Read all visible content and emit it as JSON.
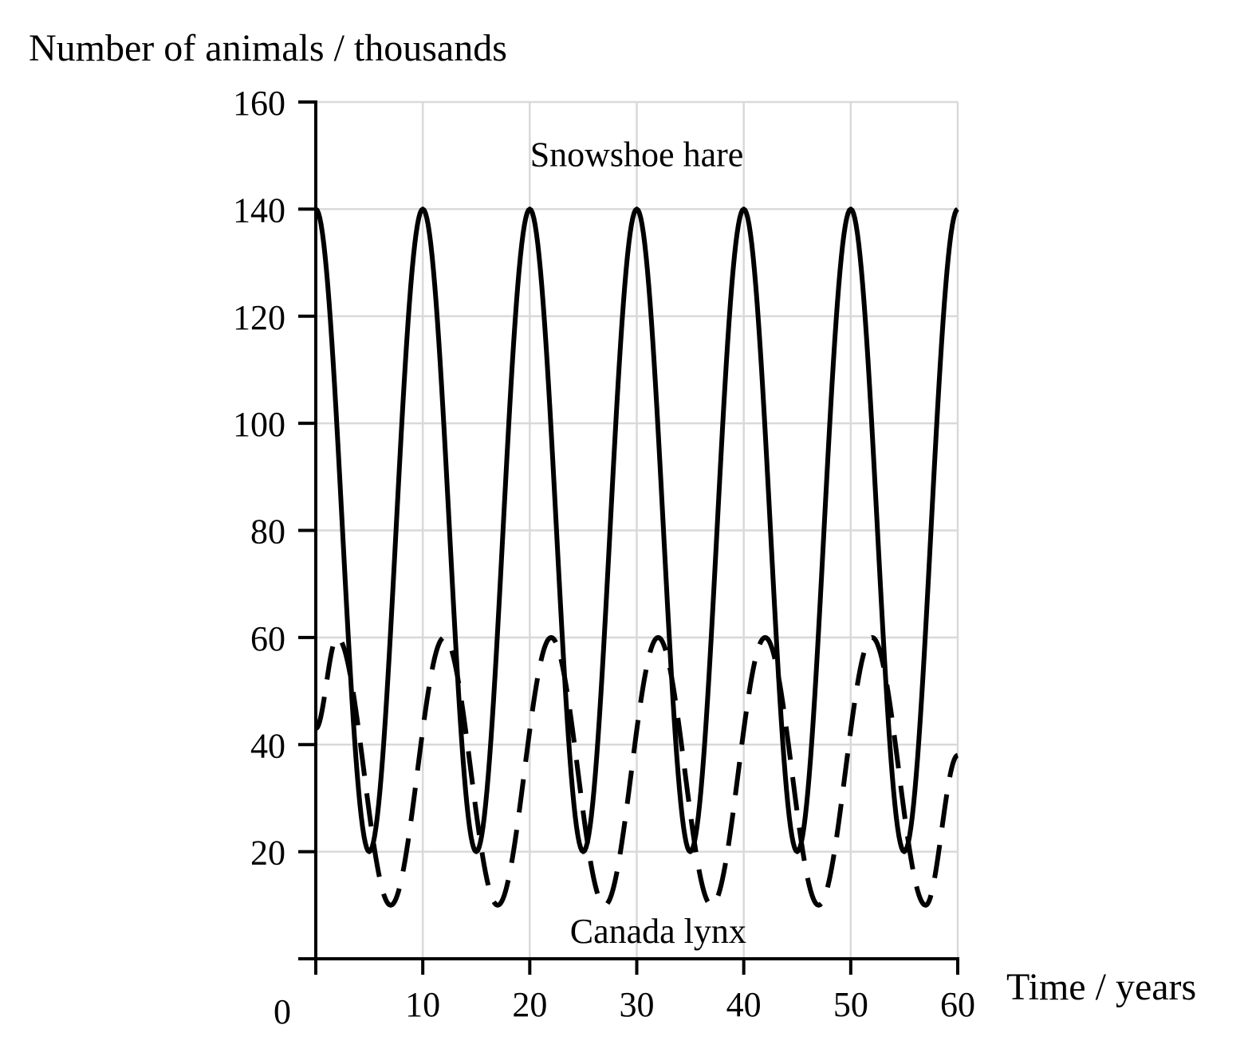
{
  "chart_data": {
    "type": "line",
    "ylabel": "Number of animals / thousands",
    "xlabel": "Time / years",
    "origin_label": "0",
    "xlim": [
      0,
      60
    ],
    "ylim": [
      0,
      160
    ],
    "x_ticks": [
      0,
      10,
      20,
      30,
      40,
      50,
      60
    ],
    "x_tick_labels": [
      "",
      "10",
      "20",
      "30",
      "40",
      "50",
      "60"
    ],
    "y_ticks": [
      0,
      20,
      40,
      60,
      80,
      100,
      120,
      140,
      160
    ],
    "y_tick_labels": [
      "",
      "20",
      "40",
      "60",
      "80",
      "100",
      "120",
      "140",
      "160"
    ],
    "grid": true,
    "series": [
      {
        "name": "Snowshoe hare",
        "style": "solid",
        "color": "#000000",
        "x": [
          0,
          5,
          10,
          15,
          20,
          25,
          30,
          35,
          40,
          45,
          50,
          55,
          60
        ],
        "y": [
          140,
          20,
          140,
          20,
          140,
          20,
          140,
          20,
          140,
          20,
          140,
          20,
          140
        ]
      },
      {
        "name": "Canada lynx",
        "style": "dashed",
        "color": "#000000",
        "x": [
          0,
          2,
          7,
          12,
          17,
          22,
          27,
          32,
          37,
          42,
          47,
          52,
          57,
          60
        ],
        "y": [
          43,
          60,
          10,
          60,
          10,
          60,
          10,
          60,
          10,
          60,
          10,
          60,
          10,
          38
        ]
      }
    ],
    "annotations": [
      {
        "text": "Snowshoe hare",
        "x": 30,
        "y": 148
      },
      {
        "text": "Canada lynx",
        "x": 32,
        "y": 3
      }
    ]
  }
}
